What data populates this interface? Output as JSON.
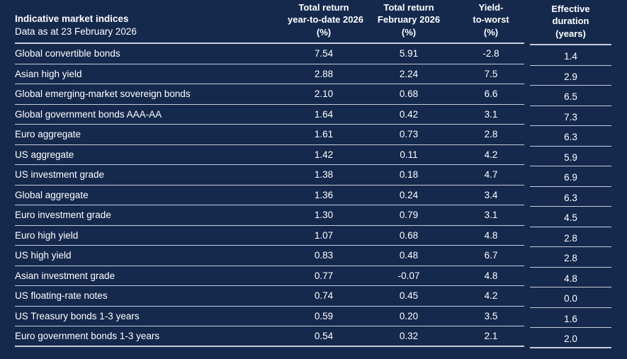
{
  "colors": {
    "background": "#15294D",
    "divider": "#C6CDDA",
    "text": "#FFFFFF"
  },
  "table": {
    "title": "Indicative market indices",
    "subtitle": "Data as at 23 February 2026",
    "columns": {
      "ytd": {
        "line1": "Total return",
        "line2": "year-to-date 2026",
        "line3": "(%)"
      },
      "feb": {
        "line1": "Total return",
        "line2": "February 2026",
        "line3": "(%)"
      },
      "ytw": {
        "line1": "Yield-",
        "line2": "to-worst",
        "line3": "(%)"
      },
      "dur": {
        "line1": "Effective",
        "line2": "duration",
        "line3": "(years)"
      }
    },
    "rows": [
      {
        "name": "Global convertible bonds",
        "ytd": "7.54",
        "feb": "5.91",
        "ytw": "-2.8",
        "duration": "1.4"
      },
      {
        "name": "Asian high yield",
        "ytd": "2.88",
        "feb": "2.24",
        "ytw": "7.5",
        "duration": "2.9"
      },
      {
        "name": "Global emerging-market sovereign bonds",
        "ytd": "2.10",
        "feb": "0.68",
        "ytw": "6.6",
        "duration": "6.5"
      },
      {
        "name": "Global government bonds AAA-AA",
        "ytd": "1.64",
        "feb": "0.42",
        "ytw": "3.1",
        "duration": "7.3"
      },
      {
        "name": "Euro aggregate",
        "ytd": "1.61",
        "feb": "0.73",
        "ytw": "2.8",
        "duration": "6.3"
      },
      {
        "name": "US aggregate",
        "ytd": "1.42",
        "feb": "0.11",
        "ytw": "4.2",
        "duration": "5.9"
      },
      {
        "name": "US investment grade",
        "ytd": "1.38",
        "feb": "0.18",
        "ytw": "4.7",
        "duration": "6.9"
      },
      {
        "name": "Global aggregate",
        "ytd": "1.36",
        "feb": "0.24",
        "ytw": "3.4",
        "duration": "6.3"
      },
      {
        "name": "Euro investment grade",
        "ytd": "1.30",
        "feb": "0.79",
        "ytw": "3.1",
        "duration": "4.5"
      },
      {
        "name": "Euro high yield",
        "ytd": "1.07",
        "feb": "0.68",
        "ytw": "4.8",
        "duration": "2.8"
      },
      {
        "name": "US high yield",
        "ytd": "0.83",
        "feb": "0.48",
        "ytw": "6.7",
        "duration": "2.8"
      },
      {
        "name": "Asian investment grade",
        "ytd": "0.77",
        "feb": "-0.07",
        "ytw": "4.8",
        "duration": "4.8"
      },
      {
        "name": "US floating-rate notes",
        "ytd": "0.74",
        "feb": "0.45",
        "ytw": "4.2",
        "duration": "0.0"
      },
      {
        "name": "US Treasury bonds 1-3 years",
        "ytd": "0.59",
        "feb": "0.20",
        "ytw": "3.5",
        "duration": "1.6"
      },
      {
        "name": "Euro government bonds 1-3 years",
        "ytd": "0.54",
        "feb": "0.32",
        "ytw": "2.1",
        "duration": "2.0"
      }
    ]
  },
  "chart_data": {
    "type": "table",
    "title": "Indicative market indices",
    "subtitle": "Data as at 23 February 2026",
    "column_headers": [
      "Indicative market indices",
      "Total return year-to-date 2026 (%)",
      "Total return February 2026 (%)",
      "Yield-to-worst (%)",
      "Effective duration (years)"
    ],
    "rows": [
      [
        "Global convertible bonds",
        7.54,
        5.91,
        -2.8,
        1.4
      ],
      [
        "Asian high yield",
        2.88,
        2.24,
        7.5,
        2.9
      ],
      [
        "Global emerging-market sovereign bonds",
        2.1,
        0.68,
        6.6,
        6.5
      ],
      [
        "Global government bonds AAA-AA",
        1.64,
        0.42,
        3.1,
        7.3
      ],
      [
        "Euro aggregate",
        1.61,
        0.73,
        2.8,
        6.3
      ],
      [
        "US aggregate",
        1.42,
        0.11,
        4.2,
        5.9
      ],
      [
        "US investment grade",
        1.38,
        0.18,
        4.7,
        6.9
      ],
      [
        "Global aggregate",
        1.36,
        0.24,
        3.4,
        6.3
      ],
      [
        "Euro investment grade",
        1.3,
        0.79,
        3.1,
        4.5
      ],
      [
        "Euro high yield",
        1.07,
        0.68,
        4.8,
        2.8
      ],
      [
        "US high yield",
        0.83,
        0.48,
        6.7,
        2.8
      ],
      [
        "Asian investment grade",
        0.77,
        -0.07,
        4.8,
        4.8
      ],
      [
        "US floating-rate notes",
        0.74,
        0.45,
        4.2,
        0.0
      ],
      [
        "US Treasury bonds 1-3 years",
        0.59,
        0.2,
        3.5,
        1.6
      ],
      [
        "Euro government bonds 1-3 years",
        0.54,
        0.32,
        2.1,
        2.0
      ]
    ]
  }
}
